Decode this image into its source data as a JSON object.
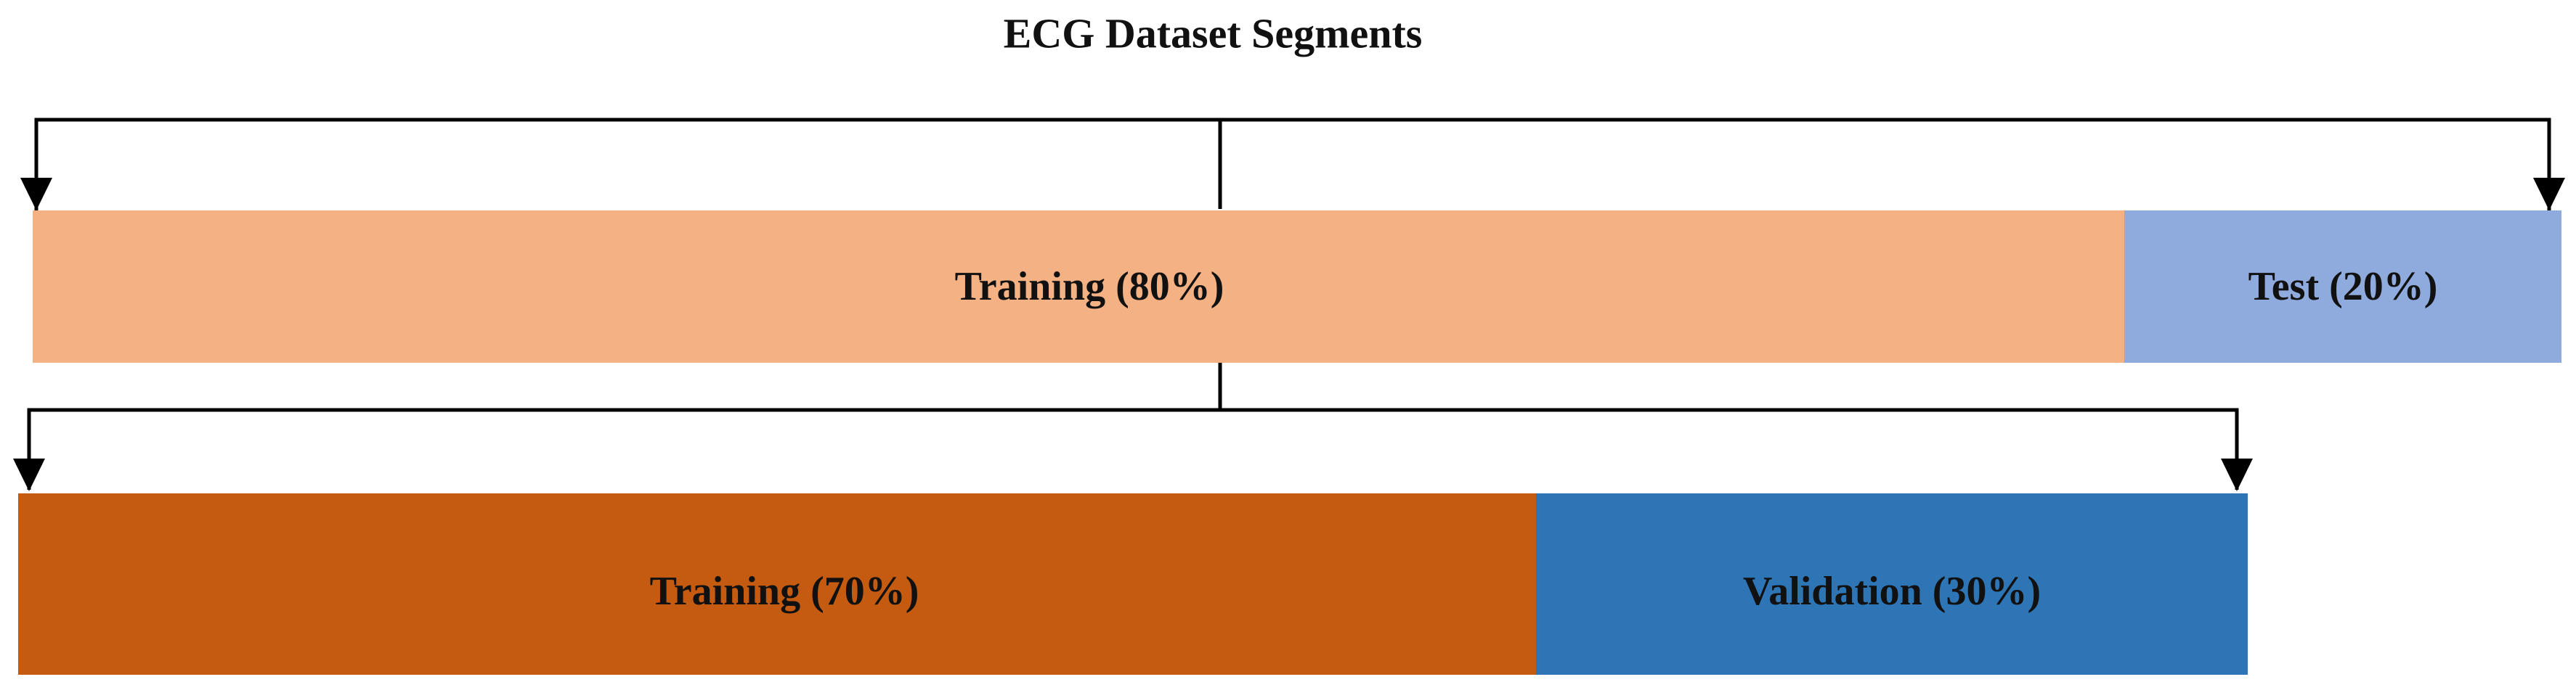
{
  "title": "ECG Dataset Segments",
  "levels": [
    {
      "segments": [
        {
          "label": "Training (80%)"
        },
        {
          "label": "Test (20%)"
        }
      ]
    },
    {
      "segments": [
        {
          "label": "Training (70%)"
        },
        {
          "label": "Validation (30%)"
        }
      ]
    }
  ]
}
